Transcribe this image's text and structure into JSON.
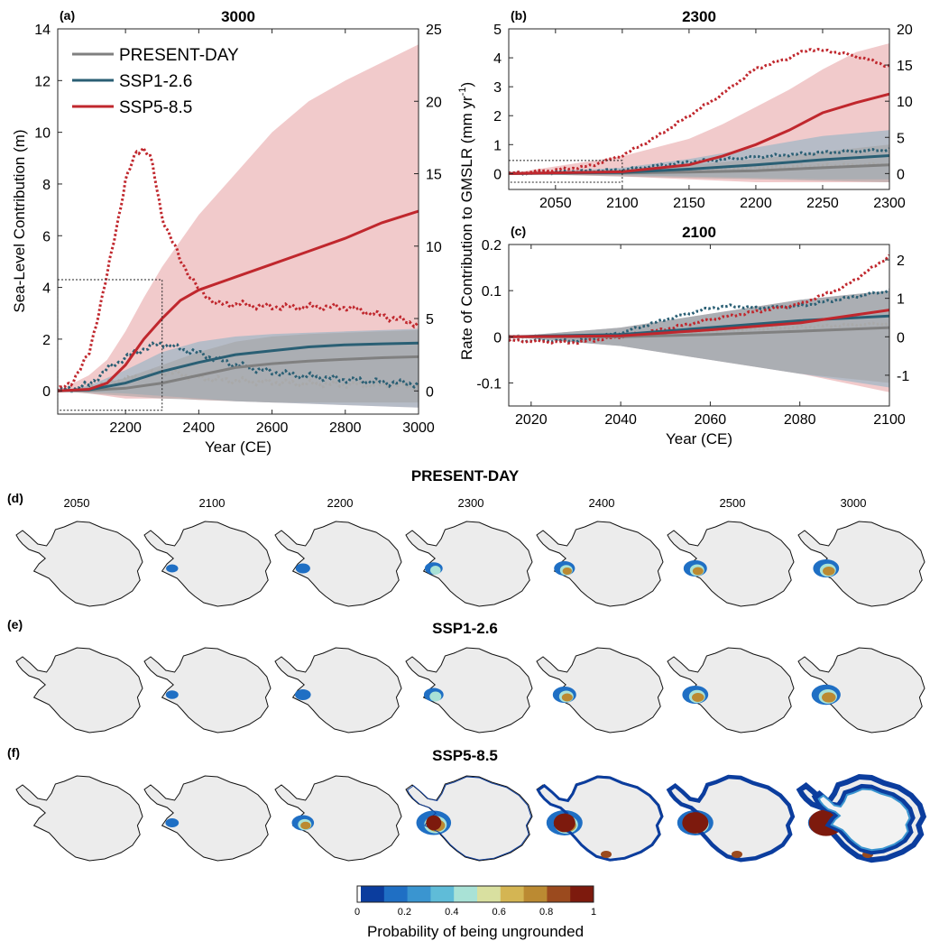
{
  "colors": {
    "present": "#808080",
    "ssp126": "#2a5f74",
    "ssp585": "#c0272d",
    "band_present": "#a3a3a3",
    "band_ssp126": "#8fb2c4",
    "band_ssp585": "#e7a7a8"
  },
  "legend": [
    "PRESENT-DAY",
    "SSP1-2.6",
    "SSP5-8.5"
  ],
  "chart_data": [
    {
      "id": "a",
      "type": "line",
      "panel_label": "(a)",
      "title": "3000",
      "xlabel": "Year (CE)",
      "ylabel_left": "Sea-Level Contribution (m)",
      "ylabel_right": "Rate of Contribution to GMSLR (mm yr",
      "ylabel_right_sup": "-1",
      "ylabel_right_end": ")",
      "xlim": [
        2015,
        3000
      ],
      "ylim": [
        -0.9,
        14
      ],
      "ylim_right": [
        -1.6,
        25
      ],
      "xticks": [
        2200,
        2400,
        2600,
        2800,
        3000
      ],
      "yticks": [
        0,
        2,
        4,
        6,
        8,
        10,
        12,
        14
      ],
      "yticks_right": [
        0,
        5,
        10,
        15,
        20,
        25
      ],
      "series": [
        {
          "name": "PRESENT-DAY",
          "x": [
            2015,
            2100,
            2200,
            2300,
            2400,
            2500,
            2600,
            2700,
            2800,
            2900,
            3000
          ],
          "median": [
            0,
            0.02,
            0.1,
            0.3,
            0.6,
            0.9,
            1.05,
            1.15,
            1.22,
            1.28,
            1.32
          ],
          "low": [
            0,
            -0.1,
            -0.2,
            -0.3,
            -0.35,
            -0.4,
            -0.45,
            -0.45,
            -0.45,
            -0.45,
            -0.45
          ],
          "high": [
            0,
            0.15,
            0.5,
            1.0,
            1.5,
            1.9,
            2.1,
            2.2,
            2.25,
            2.3,
            2.35
          ]
        },
        {
          "name": "SSP1-2.6",
          "x": [
            2015,
            2100,
            2200,
            2300,
            2400,
            2500,
            2600,
            2700,
            2800,
            2900,
            3000
          ],
          "median": [
            0,
            0.04,
            0.3,
            0.75,
            1.1,
            1.4,
            1.55,
            1.7,
            1.78,
            1.82,
            1.85
          ],
          "low": [
            0,
            -0.05,
            -0.1,
            -0.2,
            -0.3,
            -0.4,
            -0.45,
            -0.5,
            -0.55,
            -0.6,
            -0.65
          ],
          "high": [
            0,
            0.2,
            0.8,
            1.5,
            1.9,
            2.1,
            2.2,
            2.25,
            2.3,
            2.35,
            2.4
          ]
        },
        {
          "name": "SSP5-8.5",
          "x": [
            2015,
            2100,
            2150,
            2200,
            2250,
            2300,
            2350,
            2400,
            2500,
            2600,
            2700,
            2800,
            2900,
            3000
          ],
          "median": [
            0,
            0.06,
            0.3,
            1.0,
            2.0,
            2.8,
            3.5,
            3.9,
            4.4,
            4.9,
            5.4,
            5.9,
            6.5,
            6.95
          ],
          "low": [
            0,
            -0.1,
            -0.2,
            -0.3,
            -0.3,
            -0.3,
            -0.3,
            -0.35,
            -0.4,
            -0.45,
            -0.5,
            -0.55,
            -0.6,
            -0.65
          ],
          "high": [
            0,
            0.6,
            1.2,
            2.3,
            3.6,
            4.8,
            5.8,
            6.8,
            8.4,
            10.0,
            11.2,
            12.0,
            12.7,
            13.4
          ]
        }
      ],
      "rate_series": [
        {
          "name": "PRESENT-DAY",
          "x": [
            2015,
            2100,
            2200,
            2300,
            2350,
            2400,
            2500,
            2600,
            2700,
            2800,
            2900,
            3000
          ],
          "values": [
            0,
            0.3,
            0.8,
            1.3,
            1.2,
            0.9,
            0.7,
            0.6,
            0.5,
            0.45,
            0.4,
            0.35
          ]
        },
        {
          "name": "SSP1-2.6",
          "x": [
            2015,
            2100,
            2150,
            2200,
            2250,
            2300,
            2350,
            2400,
            2500,
            2600,
            2700,
            2800,
            2900,
            3000
          ],
          "values": [
            0,
            0.4,
            1.5,
            2.3,
            2.9,
            3.3,
            2.9,
            2.6,
            1.8,
            1.3,
            1.0,
            0.8,
            0.6,
            0.5
          ]
        },
        {
          "name": "SSP5-8.5",
          "x": [
            2015,
            2050,
            2100,
            2150,
            2200,
            2230,
            2250,
            2270,
            2300,
            2350,
            2400,
            2450,
            2500,
            2600,
            2700,
            2800,
            2900,
            3000
          ],
          "values": [
            0,
            0.5,
            2.5,
            8.0,
            14.5,
            16.5,
            16.8,
            16.0,
            12.0,
            9.0,
            7.0,
            6.0,
            6.0,
            5.8,
            5.8,
            5.8,
            5.2,
            4.6
          ]
        }
      ]
    },
    {
      "id": "b",
      "type": "line",
      "panel_label": "(b)",
      "title": "2300",
      "xlim": [
        2015,
        2300
      ],
      "ylim": [
        -0.55,
        5
      ],
      "ylim_right": [
        -2.2,
        20
      ],
      "xticks": [
        2050,
        2100,
        2150,
        2200,
        2250,
        2300
      ],
      "yticks": [
        0,
        1,
        2,
        3,
        4,
        5
      ],
      "yticks_right": [
        0,
        5,
        10,
        15,
        20
      ],
      "series": [
        {
          "name": "PRESENT-DAY",
          "x": [
            2015,
            2100,
            2150,
            2200,
            2250,
            2300
          ],
          "median": [
            0,
            0.02,
            0.05,
            0.1,
            0.2,
            0.3
          ],
          "low": [
            0,
            -0.1,
            -0.15,
            -0.2,
            -0.25,
            -0.3
          ],
          "high": [
            0,
            0.15,
            0.3,
            0.5,
            0.75,
            1.0
          ]
        },
        {
          "name": "SSP1-2.6",
          "x": [
            2015,
            2100,
            2150,
            2200,
            2250,
            2300
          ],
          "median": [
            0,
            0.04,
            0.15,
            0.3,
            0.48,
            0.62
          ],
          "low": [
            0,
            -0.05,
            -0.1,
            -0.15,
            -0.2,
            -0.2
          ],
          "high": [
            0,
            0.2,
            0.5,
            0.9,
            1.3,
            1.5
          ]
        },
        {
          "name": "SSP5-8.5",
          "x": [
            2015,
            2100,
            2150,
            2175,
            2200,
            2225,
            2250,
            2275,
            2300
          ],
          "median": [
            0,
            0.06,
            0.3,
            0.6,
            1.0,
            1.5,
            2.1,
            2.45,
            2.75
          ],
          "low": [
            0,
            -0.1,
            -0.2,
            -0.25,
            -0.3,
            -0.3,
            -0.3,
            -0.3,
            -0.3
          ],
          "high": [
            0,
            0.6,
            1.2,
            1.7,
            2.3,
            2.9,
            3.6,
            4.2,
            4.5
          ]
        }
      ],
      "rate_series": [
        {
          "name": "PRESENT-DAY",
          "x": [
            2015,
            2100,
            2150,
            2200,
            2250,
            2300
          ],
          "values": [
            0,
            0.3,
            0.5,
            0.8,
            1.1,
            1.3
          ]
        },
        {
          "name": "SSP1-2.6",
          "x": [
            2015,
            2050,
            2100,
            2150,
            2200,
            2250,
            2300
          ],
          "values": [
            0,
            0.2,
            0.5,
            1.6,
            2.3,
            2.9,
            3.3
          ]
        },
        {
          "name": "SSP5-8.5",
          "x": [
            2015,
            2050,
            2075,
            2100,
            2125,
            2150,
            2175,
            2200,
            2225,
            2240,
            2260,
            2280,
            2300
          ],
          "values": [
            0,
            0.5,
            1.0,
            2.5,
            5.0,
            8.0,
            11.0,
            14.5,
            16.0,
            17.2,
            16.8,
            16.0,
            14.8
          ]
        }
      ]
    },
    {
      "id": "c",
      "type": "line",
      "panel_label": "(c)",
      "title": "2100",
      "xlabel": "Year (CE)",
      "xlim": [
        2015,
        2100
      ],
      "ylim": [
        -0.15,
        0.2
      ],
      "ylim_right": [
        -1.8,
        2.4
      ],
      "xticks": [
        2020,
        2040,
        2060,
        2080,
        2100
      ],
      "yticks": [
        -0.1,
        0,
        0.1,
        0.2
      ],
      "ytick_labels": [
        "-0.1",
        "0",
        "0.1",
        "0.2"
      ],
      "yticks_right": [
        -1,
        0,
        1,
        2
      ],
      "series": [
        {
          "name": "PRESENT-DAY",
          "x": [
            2015,
            2040,
            2060,
            2080,
            2100
          ],
          "median": [
            0,
            0.0,
            0.005,
            0.012,
            0.02
          ],
          "low": [
            0,
            -0.02,
            -0.05,
            -0.08,
            -0.1
          ],
          "high": [
            0,
            0.02,
            0.05,
            0.08,
            0.1
          ]
        },
        {
          "name": "SSP1-2.6",
          "x": [
            2015,
            2040,
            2060,
            2080,
            2100
          ],
          "median": [
            0,
            0.005,
            0.02,
            0.035,
            0.045
          ],
          "low": [
            0,
            -0.02,
            -0.05,
            -0.08,
            -0.11
          ],
          "high": [
            0,
            0.02,
            0.05,
            0.08,
            0.1
          ]
        },
        {
          "name": "SSP5-8.5",
          "x": [
            2015,
            2040,
            2060,
            2080,
            2100
          ],
          "median": [
            0,
            0.002,
            0.015,
            0.03,
            0.058
          ],
          "low": [
            0,
            -0.02,
            -0.05,
            -0.08,
            -0.12
          ],
          "high": [
            0,
            0.02,
            0.05,
            0.08,
            0.1
          ]
        }
      ],
      "rate_series": [
        {
          "name": "PRESENT-DAY",
          "x": [
            2015,
            2040,
            2060,
            2080,
            2100
          ],
          "values": [
            0,
            0.05,
            0.15,
            0.25,
            0.35
          ]
        },
        {
          "name": "SSP1-2.6",
          "x": [
            2015,
            2030,
            2040,
            2050,
            2060,
            2065,
            2070,
            2080,
            2090,
            2100
          ],
          "values": [
            -0.1,
            -0.1,
            0.1,
            0.45,
            0.75,
            0.8,
            0.75,
            0.8,
            1.0,
            1.2
          ]
        },
        {
          "name": "SSP5-8.5",
          "x": [
            2015,
            2030,
            2040,
            2050,
            2060,
            2070,
            2080,
            2090,
            2095,
            2100
          ],
          "values": [
            -0.1,
            -0.15,
            0.0,
            0.2,
            0.45,
            0.65,
            0.85,
            1.3,
            1.7,
            2.1
          ]
        }
      ]
    }
  ],
  "maps": {
    "row_labels": [
      "(d)",
      "(e)",
      "(f)"
    ],
    "row_titles": [
      "PRESENT-DAY",
      "SSP1-2.6",
      "SSP5-8.5"
    ],
    "years": [
      "2050",
      "2100",
      "2200",
      "2300",
      "2400",
      "2500",
      "3000"
    ],
    "ungrounded_levels": [
      [
        0,
        0.05,
        0.15,
        0.28,
        0.4,
        0.5,
        0.6
      ],
      [
        0,
        0.07,
        0.2,
        0.35,
        0.5,
        0.6,
        0.72
      ],
      [
        0,
        0.1,
        0.45,
        0.95,
        1.3,
        1.55,
        2.0
      ]
    ],
    "colorbar": {
      "label": "Probability of being ungrounded",
      "tick_labels": [
        "0",
        "0.2",
        "0.4",
        "0.6",
        "0.8",
        "1"
      ],
      "colors": [
        "#ffffff",
        "#0b3d9e",
        "#1f6fc4",
        "#3a95d0",
        "#5fbcd8",
        "#a9e2d6",
        "#d9e0a0",
        "#d4b553",
        "#bb8a32",
        "#9b4a1e",
        "#7d1a0d"
      ]
    }
  }
}
